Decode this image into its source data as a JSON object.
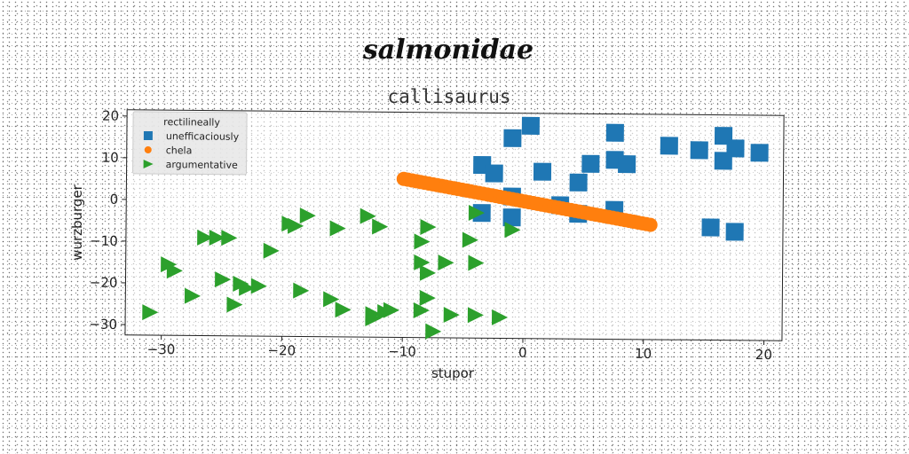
{
  "chart_data": {
    "type": "scatter",
    "suptitle": "salmonidae",
    "title": "callisaurus",
    "xlabel": "stupor",
    "ylabel": "wurzburger",
    "xlim": [
      -33,
      21.5
    ],
    "ylim": [
      -32.5,
      21.5
    ],
    "xticks": [
      -30,
      -20,
      -10,
      0,
      10,
      20
    ],
    "yticks": [
      -30,
      -20,
      -10,
      0,
      10,
      20
    ],
    "xtick_labels": [
      "−30",
      "−20",
      "−10",
      "0",
      "10",
      "20"
    ],
    "ytick_labels": [
      "−30",
      "−20",
      "−10",
      "0",
      "10",
      "20"
    ],
    "grid": false,
    "legend": {
      "title": "rectilineally",
      "position": "top-left"
    },
    "series": [
      {
        "name": "unefficaciously",
        "marker": "square",
        "color": "#1f77b4",
        "points": [
          [
            0.5,
            18.5
          ],
          [
            -1,
            15.5
          ],
          [
            7.5,
            17
          ],
          [
            12,
            14
          ],
          [
            14.5,
            13
          ],
          [
            16.5,
            16.5
          ],
          [
            17.5,
            13.5
          ],
          [
            16.5,
            10.5
          ],
          [
            19.5,
            12.5
          ],
          [
            -3.5,
            9
          ],
          [
            -2.5,
            7
          ],
          [
            1.5,
            7.5
          ],
          [
            5.5,
            9.5
          ],
          [
            7.5,
            10.5
          ],
          [
            8.5,
            9.5
          ],
          [
            4.5,
            5
          ],
          [
            -1,
            1.5
          ],
          [
            3,
            -0.5
          ],
          [
            4.5,
            -2.5
          ],
          [
            7.5,
            -1.5
          ],
          [
            -3.5,
            -2.5
          ],
          [
            -1,
            -3.5
          ],
          [
            15.5,
            -5.5
          ],
          [
            17.5,
            -6.5
          ]
        ]
      },
      {
        "name": "chela",
        "marker": "circle",
        "color": "#ff7f0e",
        "x_range": [
          -10,
          10.5
        ],
        "y_range": [
          5.5,
          -5
        ],
        "n_points": 60
      },
      {
        "name": "argumentative",
        "marker": "triangle-right",
        "color": "#2ca02c",
        "points": [
          [
            -31,
            -27
          ],
          [
            -29.5,
            -15.5
          ],
          [
            -29,
            -17
          ],
          [
            -27.5,
            -23
          ],
          [
            -26.5,
            -9
          ],
          [
            -25.5,
            -9
          ],
          [
            -25,
            -19
          ],
          [
            -24.5,
            -9
          ],
          [
            -24,
            -25
          ],
          [
            -23.5,
            -20
          ],
          [
            -23,
            -21
          ],
          [
            -22,
            -20.5
          ],
          [
            -21,
            -12
          ],
          [
            -19.5,
            -5.5
          ],
          [
            -19,
            -6
          ],
          [
            -18.5,
            -21.5
          ],
          [
            -18,
            -3.5
          ],
          [
            -16,
            -23.5
          ],
          [
            -15.5,
            -6.5
          ],
          [
            -15,
            -26
          ],
          [
            -13,
            -3.5
          ],
          [
            -12.5,
            -27
          ],
          [
            -12.5,
            -28
          ],
          [
            -12,
            -6
          ],
          [
            -11.5,
            -26.5
          ],
          [
            -11,
            -26
          ],
          [
            -8.5,
            -9.5
          ],
          [
            -8.5,
            -14.5
          ],
          [
            -8.5,
            -26
          ],
          [
            -8,
            -23
          ],
          [
            -8,
            -17
          ],
          [
            -8,
            -6
          ],
          [
            -7.5,
            -31
          ],
          [
            -6.5,
            -14.5
          ],
          [
            -6,
            -27
          ],
          [
            -4.5,
            -9
          ],
          [
            -4,
            -14.5
          ],
          [
            -4,
            -27
          ],
          [
            -4,
            -2.5
          ],
          [
            -2,
            -27.5
          ],
          [
            -1,
            -6.5
          ]
        ]
      }
    ]
  }
}
